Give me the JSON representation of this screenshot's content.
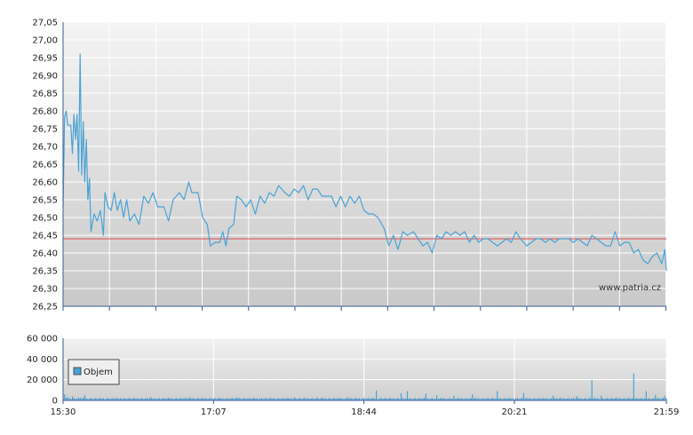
{
  "watermark": "www.patria.cz",
  "colors": {
    "price_line": "#4aa3d4",
    "reference_line": "#e04848",
    "volume_bar": "#4aa3d4",
    "plot_bg_top": "#f4f4f4",
    "plot_bg_bottom": "#c9c9c9",
    "grid": "#ffffff",
    "axis": "#3a5a9a"
  },
  "chart_data": [
    {
      "type": "line",
      "name": "price",
      "ylim": [
        26.25,
        27.05
      ],
      "y_ticks": [
        "27,05",
        "27,00",
        "26,95",
        "26,90",
        "26,85",
        "26,80",
        "26,75",
        "26,70",
        "26,65",
        "26,60",
        "26,55",
        "26,50",
        "26,45",
        "26,40",
        "26,35",
        "26,30",
        "26,25"
      ],
      "reference_value": 26.44,
      "x_domain": [
        "15:30",
        "21:59"
      ],
      "grid": true,
      "points": [
        [
          "15:30",
          26.53
        ],
        [
          "15:31",
          26.78
        ],
        [
          "15:32",
          26.8
        ],
        [
          "15:33",
          26.76
        ],
        [
          "15:35",
          26.76
        ],
        [
          "15:36",
          26.68
        ],
        [
          "15:37",
          26.79
        ],
        [
          "15:38",
          26.72
        ],
        [
          "15:39",
          26.79
        ],
        [
          "15:40",
          26.63
        ],
        [
          "15:41",
          26.96
        ],
        [
          "15:42",
          26.62
        ],
        [
          "15:43",
          26.77
        ],
        [
          "15:44",
          26.6
        ],
        [
          "15:45",
          26.72
        ],
        [
          "15:46",
          26.55
        ],
        [
          "15:47",
          26.61
        ],
        [
          "15:48",
          26.46
        ],
        [
          "15:50",
          26.51
        ],
        [
          "15:52",
          26.49
        ],
        [
          "15:54",
          26.52
        ],
        [
          "15:56",
          26.45
        ],
        [
          "15:57",
          26.57
        ],
        [
          "15:59",
          26.53
        ],
        [
          "16:01",
          26.52
        ],
        [
          "16:03",
          26.57
        ],
        [
          "16:05",
          26.52
        ],
        [
          "16:07",
          26.55
        ],
        [
          "16:09",
          26.5
        ],
        [
          "16:11",
          26.55
        ],
        [
          "16:13",
          26.49
        ],
        [
          "16:16",
          26.51
        ],
        [
          "16:19",
          26.48
        ],
        [
          "16:22",
          26.56
        ],
        [
          "16:25",
          26.54
        ],
        [
          "16:28",
          26.57
        ],
        [
          "16:31",
          26.53
        ],
        [
          "16:35",
          26.53
        ],
        [
          "16:38",
          26.49
        ],
        [
          "16:41",
          26.55
        ],
        [
          "16:45",
          26.57
        ],
        [
          "16:48",
          26.55
        ],
        [
          "16:51",
          26.6
        ],
        [
          "16:53",
          26.57
        ],
        [
          "16:57",
          26.57
        ],
        [
          "17:00",
          26.5
        ],
        [
          "17:03",
          26.48
        ],
        [
          "17:05",
          26.42
        ],
        [
          "17:08",
          26.43
        ],
        [
          "17:11",
          26.43
        ],
        [
          "17:13",
          26.46
        ],
        [
          "17:15",
          26.42
        ],
        [
          "17:17",
          26.47
        ],
        [
          "17:20",
          26.48
        ],
        [
          "17:22",
          26.56
        ],
        [
          "17:25",
          26.55
        ],
        [
          "17:28",
          26.53
        ],
        [
          "17:31",
          26.55
        ],
        [
          "17:34",
          26.51
        ],
        [
          "17:37",
          26.56
        ],
        [
          "17:40",
          26.54
        ],
        [
          "17:43",
          26.57
        ],
        [
          "17:46",
          26.56
        ],
        [
          "17:49",
          26.59
        ],
        [
          "17:53",
          26.57
        ],
        [
          "17:56",
          26.56
        ],
        [
          "17:59",
          26.58
        ],
        [
          "18:02",
          26.57
        ],
        [
          "18:05",
          26.59
        ],
        [
          "18:08",
          26.55
        ],
        [
          "18:11",
          26.58
        ],
        [
          "18:14",
          26.58
        ],
        [
          "18:17",
          26.56
        ],
        [
          "18:20",
          26.56
        ],
        [
          "18:23",
          26.56
        ],
        [
          "18:26",
          26.53
        ],
        [
          "18:29",
          26.56
        ],
        [
          "18:32",
          26.53
        ],
        [
          "18:35",
          26.56
        ],
        [
          "18:38",
          26.54
        ],
        [
          "18:41",
          26.56
        ],
        [
          "18:44",
          26.52
        ],
        [
          "18:47",
          26.51
        ],
        [
          "18:50",
          26.51
        ],
        [
          "18:53",
          26.5
        ],
        [
          "18:57",
          26.47
        ],
        [
          "19:00",
          26.42
        ],
        [
          "19:03",
          26.45
        ],
        [
          "19:06",
          26.41
        ],
        [
          "19:09",
          26.46
        ],
        [
          "19:12",
          26.45
        ],
        [
          "19:16",
          26.46
        ],
        [
          "19:19",
          26.44
        ],
        [
          "19:22",
          26.42
        ],
        [
          "19:25",
          26.43
        ],
        [
          "19:28",
          26.4
        ],
        [
          "19:31",
          26.45
        ],
        [
          "19:34",
          26.44
        ],
        [
          "19:37",
          26.46
        ],
        [
          "19:40",
          26.45
        ],
        [
          "19:43",
          26.46
        ],
        [
          "19:46",
          26.45
        ],
        [
          "19:49",
          26.46
        ],
        [
          "19:52",
          26.43
        ],
        [
          "19:55",
          26.45
        ],
        [
          "19:58",
          26.43
        ],
        [
          "20:01",
          26.44
        ],
        [
          "20:04",
          26.44
        ],
        [
          "20:07",
          26.43
        ],
        [
          "20:10",
          26.42
        ],
        [
          "20:13",
          26.43
        ],
        [
          "20:16",
          26.44
        ],
        [
          "20:19",
          26.43
        ],
        [
          "20:22",
          26.46
        ],
        [
          "20:25",
          26.44
        ],
        [
          "20:29",
          26.42
        ],
        [
          "20:32",
          26.43
        ],
        [
          "20:35",
          26.44
        ],
        [
          "20:38",
          26.44
        ],
        [
          "20:41",
          26.43
        ],
        [
          "20:44",
          26.44
        ],
        [
          "20:47",
          26.43
        ],
        [
          "20:50",
          26.44
        ],
        [
          "20:53",
          26.44
        ],
        [
          "20:56",
          26.44
        ],
        [
          "20:59",
          26.43
        ],
        [
          "21:02",
          26.44
        ],
        [
          "21:05",
          26.43
        ],
        [
          "21:08",
          26.42
        ],
        [
          "21:11",
          26.45
        ],
        [
          "21:14",
          26.44
        ],
        [
          "21:17",
          26.43
        ],
        [
          "21:20",
          26.42
        ],
        [
          "21:23",
          26.42
        ],
        [
          "21:26",
          26.46
        ],
        [
          "21:29",
          26.42
        ],
        [
          "21:32",
          26.43
        ],
        [
          "21:35",
          26.43
        ],
        [
          "21:38",
          26.4
        ],
        [
          "21:41",
          26.41
        ],
        [
          "21:44",
          26.38
        ],
        [
          "21:47",
          26.37
        ],
        [
          "21:50",
          26.39
        ],
        [
          "21:53",
          26.4
        ],
        [
          "21:56",
          26.37
        ],
        [
          "21:58",
          26.41
        ],
        [
          "21:59",
          26.35
        ]
      ]
    },
    {
      "type": "bar",
      "name": "Objem",
      "legend": "Objem",
      "ylim": [
        0,
        60000
      ],
      "y_ticks": [
        "60 000",
        "40 000",
        "20 000",
        "0"
      ],
      "x_ticks": [
        "15:30",
        "17:07",
        "18:44",
        "20:21",
        "21:59"
      ],
      "x_domain": [
        "15:30",
        "21:59"
      ],
      "grid": true,
      "legend_position": "left",
      "baseline_volume": 2000,
      "spikes": [
        [
          "15:31",
          6000
        ],
        [
          "15:33",
          3000
        ],
        [
          "15:36",
          4000
        ],
        [
          "15:41",
          2500
        ],
        [
          "15:44",
          5000
        ],
        [
          "16:26",
          2800
        ],
        [
          "16:52",
          3200
        ],
        [
          "17:23",
          2600
        ],
        [
          "17:59",
          3000
        ],
        [
          "18:14",
          2800
        ],
        [
          "18:34",
          2800
        ],
        [
          "18:52",
          9500
        ],
        [
          "19:08",
          7000
        ],
        [
          "19:12",
          9000
        ],
        [
          "19:24",
          6500
        ],
        [
          "19:31",
          5000
        ],
        [
          "19:42",
          4500
        ],
        [
          "19:54",
          6000
        ],
        [
          "20:10",
          9000
        ],
        [
          "20:27",
          7000
        ],
        [
          "20:46",
          4500
        ],
        [
          "21:01",
          4000
        ],
        [
          "21:11",
          19500
        ],
        [
          "21:17",
          4500
        ],
        [
          "21:27",
          3000
        ],
        [
          "21:38",
          26000
        ],
        [
          "21:46",
          9000
        ],
        [
          "21:52",
          5500
        ],
        [
          "21:58",
          4500
        ]
      ]
    }
  ]
}
